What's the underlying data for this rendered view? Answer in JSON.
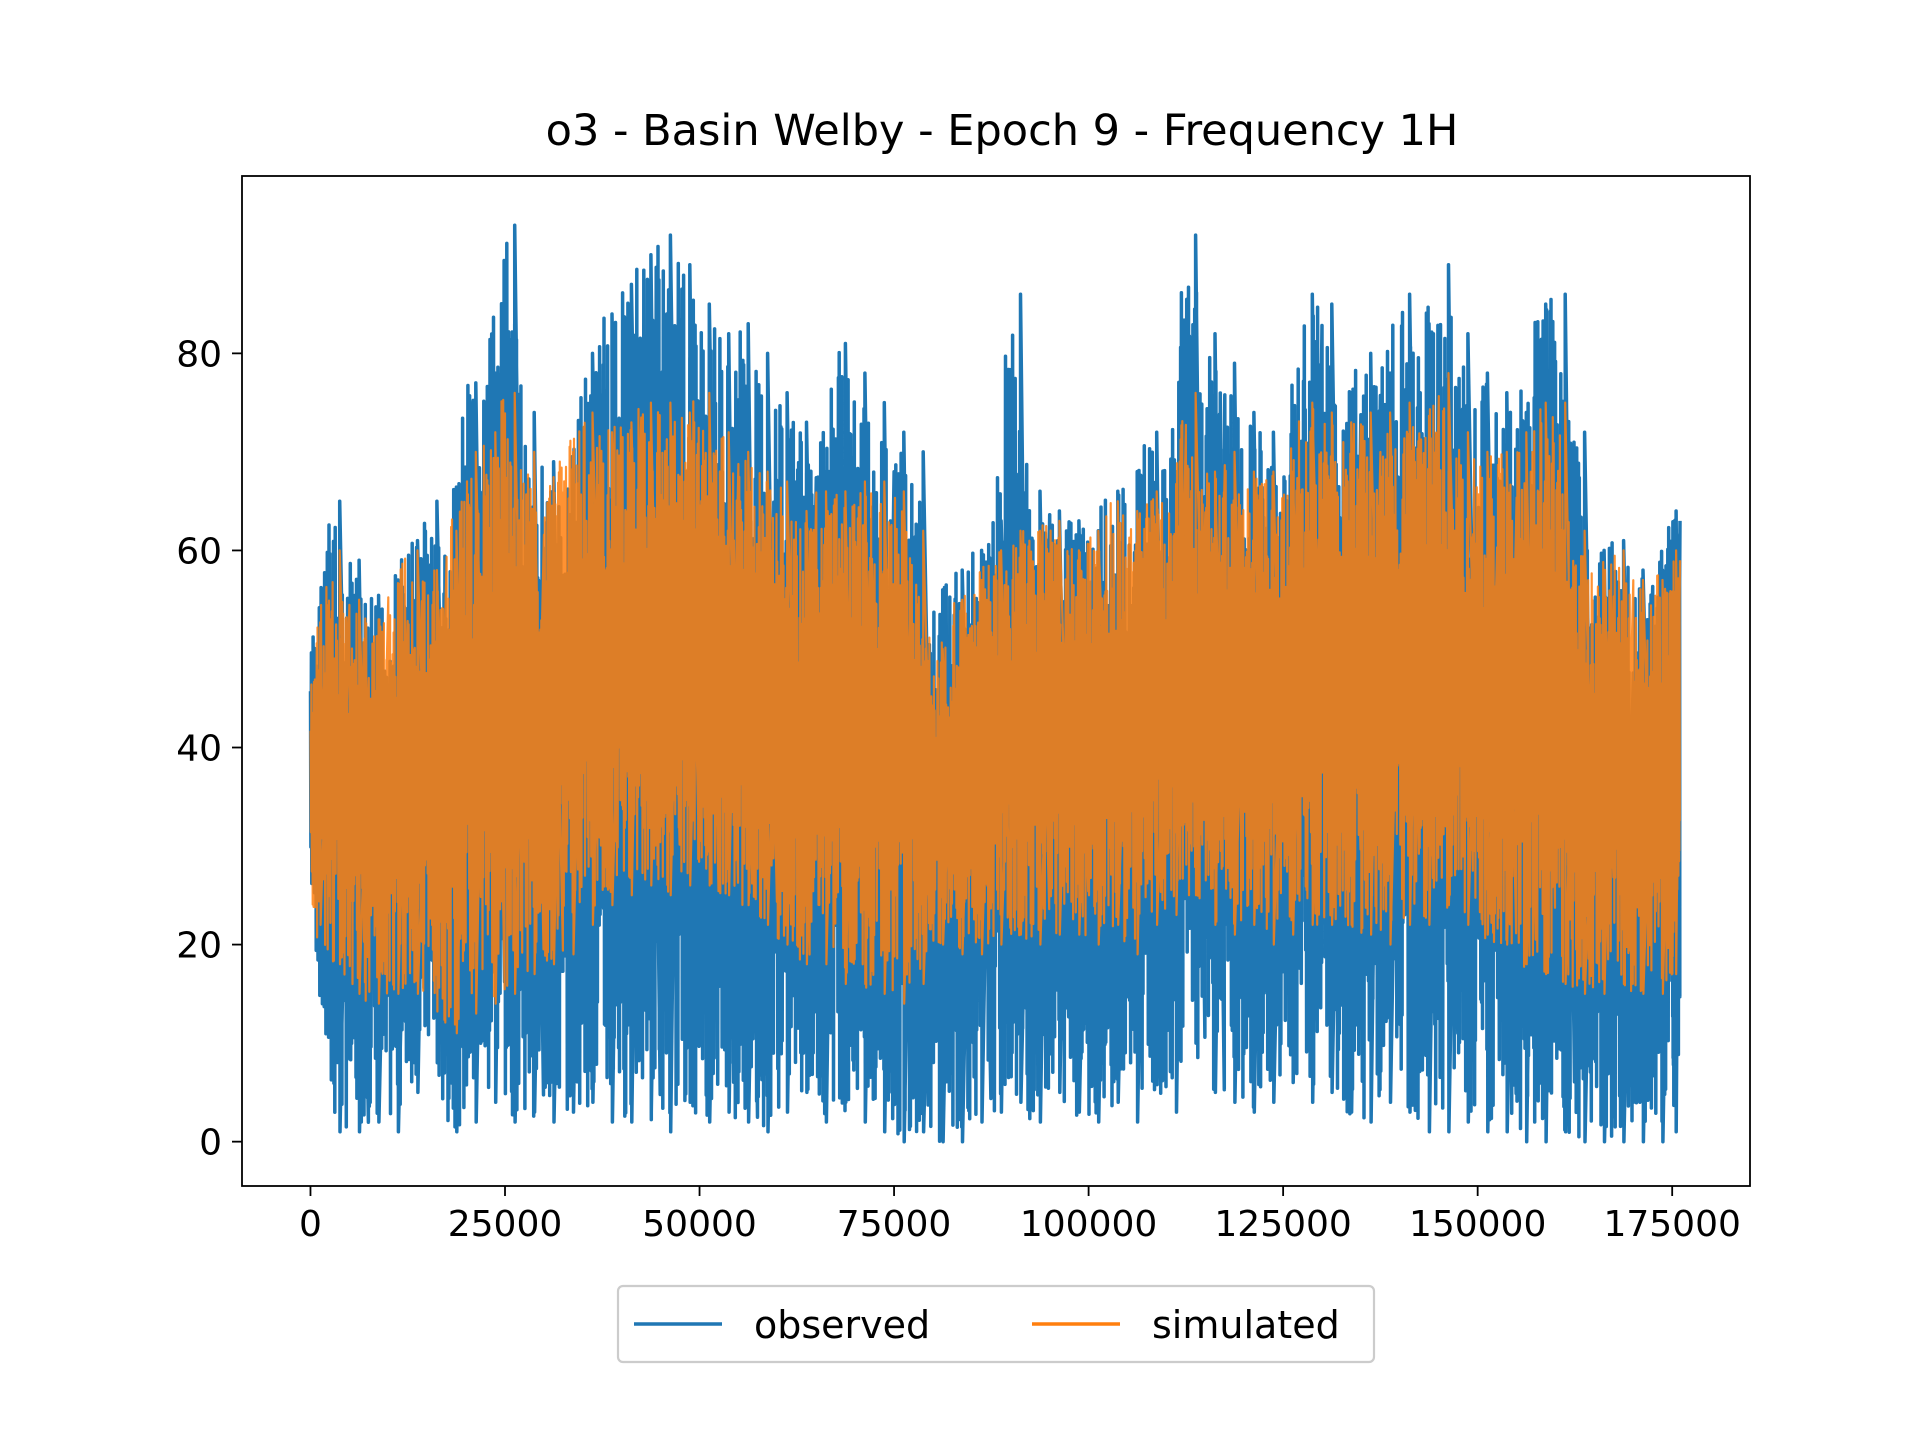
{
  "chart_data": {
    "type": "line",
    "title": "o3 - Basin Welby - Epoch 9 - Frequency 1H",
    "xlabel": "",
    "ylabel": "",
    "xlim": [
      -8800,
      185000
    ],
    "ylim": [
      -4.5,
      98
    ],
    "xticks": [
      0,
      25000,
      50000,
      75000,
      100000,
      125000,
      150000,
      175000
    ],
    "xtick_labels": [
      "0",
      "25000",
      "50000",
      "75000",
      "100000",
      "125000",
      "150000",
      "175000"
    ],
    "yticks": [
      0,
      20,
      40,
      60,
      80
    ],
    "ytick_labels": [
      "0",
      "20",
      "40",
      "60",
      "80"
    ],
    "grid": false,
    "legend_position": "bottom-center",
    "series": [
      {
        "name": "observed",
        "color": "#1f77b4",
        "x": [
          0,
          2500,
          5000,
          7500,
          10000,
          12500,
          15000,
          17500,
          20000,
          22500,
          25000,
          27500,
          30000,
          32500,
          35000,
          37500,
          40000,
          42500,
          45000,
          47500,
          50000,
          52500,
          55000,
          57500,
          60000,
          62500,
          65000,
          67500,
          70000,
          72500,
          75000,
          77500,
          80000,
          82500,
          85000,
          87500,
          90000,
          92500,
          95000,
          97500,
          100000,
          102500,
          105000,
          107500,
          110000,
          112500,
          115000,
          117500,
          120000,
          122500,
          125000,
          127500,
          130000,
          132500,
          135000,
          137500,
          140000,
          142500,
          145000,
          147500,
          150000,
          152500,
          155000,
          157500,
          160000,
          162500,
          165000,
          167500,
          170000,
          172500,
          175000,
          176000
        ],
        "max": [
          50,
          65,
          59,
          55,
          57,
          61,
          65,
          60,
          77,
          78,
          93,
          74,
          69,
          65,
          80,
          84,
          87,
          90,
          92,
          89,
          85,
          82,
          83,
          80,
          76,
          73,
          68,
          81,
          78,
          75,
          72,
          70,
          56,
          58,
          60,
          63,
          86,
          66,
          64,
          63,
          62,
          66,
          68,
          72,
          68,
          92,
          82,
          79,
          74,
          72,
          70,
          86,
          85,
          76,
          80,
          78,
          86,
          83,
          89,
          82,
          78,
          76,
          74,
          85,
          86,
          72,
          60,
          61,
          58,
          58,
          64,
          63
        ],
        "min": [
          25,
          1,
          1,
          2,
          1,
          5,
          8,
          1,
          2,
          4,
          2,
          3,
          2,
          3,
          4,
          2,
          2,
          3,
          1,
          4,
          2,
          3,
          2,
          1,
          3,
          5,
          2,
          4,
          2,
          1,
          0,
          1,
          0,
          0,
          2,
          3,
          4,
          2,
          5,
          3,
          2,
          4,
          2,
          6,
          3,
          10,
          5,
          4,
          3,
          4,
          6,
          4,
          5,
          3,
          2,
          4,
          3,
          1,
          1,
          2,
          1,
          1,
          0,
          0,
          1,
          0,
          0,
          0,
          0,
          0,
          1,
          11
        ]
      },
      {
        "name": "simulated",
        "color": "#ff7f0e",
        "x": [
          0,
          2500,
          5000,
          7500,
          10000,
          12500,
          15000,
          17500,
          20000,
          22500,
          25000,
          27500,
          30000,
          32500,
          35000,
          37500,
          40000,
          42500,
          45000,
          47500,
          50000,
          52500,
          55000,
          57500,
          60000,
          62500,
          65000,
          67500,
          70000,
          72500,
          75000,
          77500,
          80000,
          82500,
          85000,
          87500,
          90000,
          92500,
          95000,
          97500,
          100000,
          102500,
          105000,
          107500,
          110000,
          112500,
          115000,
          117500,
          120000,
          122500,
          125000,
          127500,
          130000,
          132500,
          135000,
          137500,
          140000,
          142500,
          145000,
          147500,
          150000,
          152500,
          155000,
          157500,
          160000,
          162500,
          165000,
          167500,
          170000,
          172500,
          175000,
          176000
        ],
        "max": [
          49,
          60,
          55,
          53,
          56,
          60,
          58,
          62,
          70,
          72,
          76,
          70,
          65,
          70,
          74,
          72,
          73,
          75,
          75,
          74,
          76,
          72,
          70,
          68,
          67,
          64,
          66,
          66,
          67,
          67,
          66,
          62,
          50,
          55,
          57,
          60,
          62,
          62,
          63,
          60,
          62,
          65,
          64,
          66,
          65,
          76,
          68,
          70,
          68,
          68,
          68,
          75,
          74,
          73,
          74,
          74,
          75,
          73,
          78,
          72,
          70,
          70,
          72,
          75,
          75,
          62,
          58,
          60,
          57,
          57,
          60,
          59
        ],
        "min": [
          22,
          18,
          15,
          14,
          15,
          15,
          15,
          11,
          13,
          14,
          15,
          17,
          18,
          19,
          22,
          24,
          25,
          26,
          25,
          26,
          26,
          25,
          24,
          22,
          20,
          18,
          18,
          16,
          16,
          15,
          14,
          16,
          20,
          19,
          19,
          20,
          21,
          20,
          21,
          21,
          20,
          22,
          19,
          22,
          23,
          25,
          22,
          21,
          22,
          20,
          21,
          22,
          22,
          22,
          21,
          20,
          22,
          22,
          24,
          22,
          21,
          20,
          18,
          17,
          16,
          15,
          15,
          16,
          15,
          15,
          17,
          28
        ]
      }
    ]
  }
}
